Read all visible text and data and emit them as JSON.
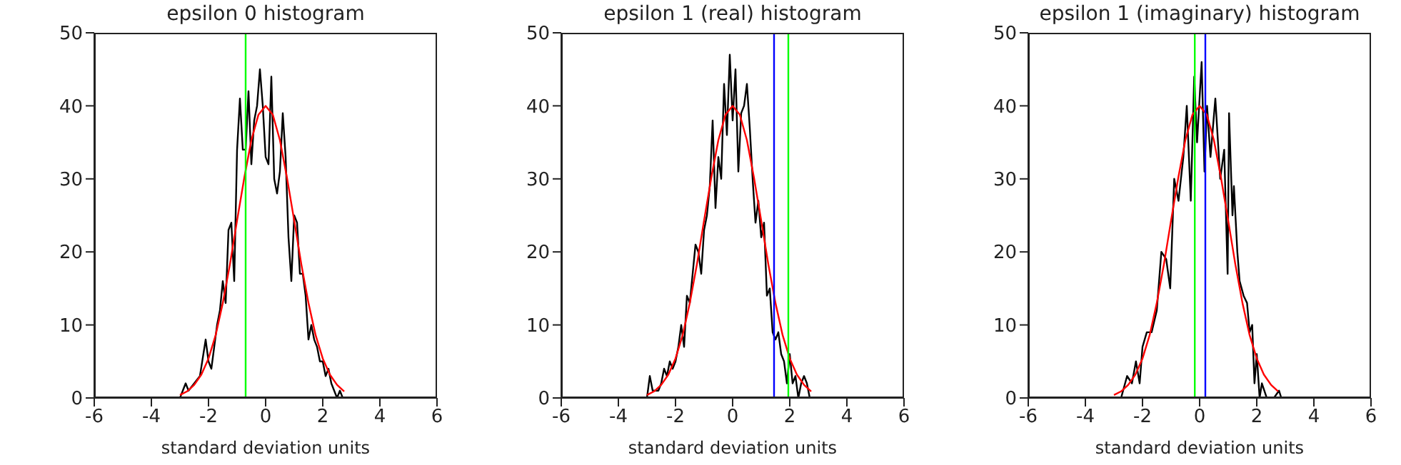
{
  "chart_data": [
    {
      "type": "line",
      "title": "epsilon 0 histogram",
      "xlabel": "standard deviation units",
      "xlim": [
        -6,
        6
      ],
      "xticks": [
        -6,
        -4,
        -2,
        0,
        2,
        4,
        6
      ],
      "ylim": [
        0,
        50
      ],
      "yticks": [
        0,
        10,
        20,
        30,
        40,
        50
      ],
      "legend": false,
      "marker": "none",
      "series": [
        {
          "color": "#000000",
          "x": [
            -3.0,
            -2.8,
            -2.7,
            -2.5,
            -2.3,
            -2.1,
            -2.0,
            -1.9,
            -1.8,
            -1.7,
            -1.6,
            -1.5,
            -1.4,
            -1.3,
            -1.2,
            -1.1,
            -1.0,
            -0.9,
            -0.8,
            -0.7,
            -0.6,
            -0.5,
            -0.4,
            -0.3,
            -0.2,
            -0.1,
            0.0,
            0.1,
            0.2,
            0.3,
            0.4,
            0.5,
            0.6,
            0.7,
            0.8,
            0.9,
            1.0,
            1.1,
            1.2,
            1.3,
            1.4,
            1.5,
            1.6,
            1.7,
            1.8,
            1.9,
            2.0,
            2.1,
            2.2,
            2.3,
            2.4,
            2.5,
            2.6,
            2.7
          ],
          "values": [
            0,
            2,
            1,
            2,
            3,
            8,
            5,
            4,
            7,
            10,
            12,
            16,
            13,
            23,
            24,
            16,
            34,
            41,
            34,
            34,
            42,
            32,
            38,
            40,
            45,
            40,
            33,
            32,
            44,
            30,
            28,
            31,
            39,
            33,
            22,
            16,
            25,
            24,
            17,
            17,
            14,
            8,
            10,
            8,
            7,
            5,
            5,
            3,
            4,
            2,
            1,
            0,
            1,
            0
          ]
        },
        {
          "color": "#ff0000",
          "x": [
            -3,
            -2.75,
            -2.5,
            -2.25,
            -2,
            -1.75,
            -1.5,
            -1.25,
            -1,
            -0.75,
            -0.5,
            -0.25,
            0,
            0.25,
            0.5,
            0.75,
            1,
            1.25,
            1.5,
            1.75,
            2,
            2.25,
            2.5,
            2.75
          ],
          "values": [
            0.4,
            0.9,
            1.8,
            3.2,
            5.4,
            8.6,
            13,
            18.3,
            24.3,
            30.1,
            35.3,
            38.8,
            40,
            38.8,
            35.3,
            30.1,
            24.3,
            18.3,
            13,
            8.6,
            5.4,
            3.2,
            1.8,
            0.9
          ]
        }
      ],
      "ref_lines": [
        {
          "axis": "x",
          "value": -0.7,
          "color": "#00ff00"
        }
      ]
    },
    {
      "type": "line",
      "title": "epsilon 1 (real) histogram",
      "xlabel": "standard deviation units",
      "xlim": [
        -6,
        6
      ],
      "xticks": [
        -6,
        -4,
        -2,
        0,
        2,
        4,
        6
      ],
      "ylim": [
        0,
        50
      ],
      "yticks": [
        0,
        10,
        20,
        30,
        40,
        50
      ],
      "legend": false,
      "marker": "none",
      "series": [
        {
          "color": "#000000",
          "x": [
            -3.0,
            -2.9,
            -2.8,
            -2.6,
            -2.5,
            -2.4,
            -2.3,
            -2.2,
            -2.1,
            -2.0,
            -1.9,
            -1.8,
            -1.7,
            -1.6,
            -1.5,
            -1.4,
            -1.3,
            -1.2,
            -1.1,
            -1.0,
            -0.9,
            -0.8,
            -0.7,
            -0.6,
            -0.5,
            -0.4,
            -0.3,
            -0.2,
            -0.1,
            0.0,
            0.1,
            0.2,
            0.3,
            0.4,
            0.5,
            0.6,
            0.7,
            0.8,
            0.9,
            1.0,
            1.1,
            1.2,
            1.3,
            1.4,
            1.5,
            1.6,
            1.7,
            1.8,
            1.9,
            2.0,
            2.1,
            2.2,
            2.3,
            2.4,
            2.5,
            2.6,
            2.7
          ],
          "values": [
            0,
            3,
            1,
            1,
            2,
            4,
            3,
            5,
            4,
            5,
            7,
            10,
            7,
            14,
            13,
            17,
            21,
            20,
            17,
            23,
            25,
            29,
            38,
            26,
            33,
            30,
            43,
            36,
            47,
            38,
            45,
            31,
            39,
            40,
            43,
            37,
            30,
            24,
            27,
            22,
            24,
            14,
            15,
            9,
            8,
            9,
            6,
            5,
            2,
            6,
            2,
            3,
            0,
            2,
            3,
            2,
            0
          ]
        },
        {
          "color": "#ff0000",
          "x": [
            -3,
            -2.75,
            -2.5,
            -2.25,
            -2,
            -1.75,
            -1.5,
            -1.25,
            -1,
            -0.75,
            -0.5,
            -0.25,
            0,
            0.25,
            0.5,
            0.75,
            1,
            1.25,
            1.5,
            1.75,
            2,
            2.25,
            2.5,
            2.75
          ],
          "values": [
            0.4,
            0.9,
            1.8,
            3.2,
            5.4,
            8.6,
            13,
            18.3,
            24.3,
            30.1,
            35.3,
            38.8,
            40,
            38.8,
            35.3,
            30.1,
            24.3,
            18.3,
            13,
            8.6,
            5.4,
            3.2,
            1.8,
            0.9
          ]
        }
      ],
      "ref_lines": [
        {
          "axis": "x",
          "value": 1.45,
          "color": "#0000ff"
        },
        {
          "axis": "x",
          "value": 1.95,
          "color": "#00ff00"
        }
      ]
    },
    {
      "type": "line",
      "title": "epsilon 1 (imaginary) histogram",
      "xlabel": "standard deviation units",
      "xlim": [
        -6,
        6
      ],
      "xticks": [
        -6,
        -4,
        -2,
        0,
        2,
        4,
        6
      ],
      "ylim": [
        0,
        50
      ],
      "yticks": [
        0,
        10,
        20,
        30,
        40,
        50
      ],
      "legend": false,
      "marker": "none",
      "series": [
        {
          "color": "#000000",
          "x": [
            -2.9,
            -2.75,
            -2.54,
            -2.37,
            -2.23,
            -2.1,
            -2.0,
            -1.85,
            -1.68,
            -1.5,
            -1.34,
            -1.17,
            -1.03,
            -0.89,
            -0.74,
            -0.57,
            -0.45,
            -0.31,
            -0.19,
            -0.09,
            0.07,
            0.17,
            0.26,
            0.38,
            0.55,
            0.72,
            0.86,
            0.98,
            1.03,
            1.15,
            1.2,
            1.32,
            1.4,
            1.54,
            1.66,
            1.75,
            1.84,
            1.92,
            2.0,
            2.1,
            2.18,
            2.35,
            2.6,
            2.78,
            2.86
          ],
          "values": [
            0,
            0,
            3,
            2,
            5,
            2,
            7,
            9,
            9,
            12,
            20,
            19,
            15,
            30,
            27,
            33,
            40,
            27,
            44,
            35,
            46,
            31,
            40,
            33,
            41,
            30,
            34,
            17,
            39,
            25,
            29,
            20,
            16,
            14,
            13,
            9,
            10,
            2,
            6,
            0,
            2,
            0,
            0,
            1,
            0
          ]
        },
        {
          "color": "#ff0000",
          "x": [
            -3,
            -2.75,
            -2.5,
            -2.25,
            -2,
            -1.75,
            -1.5,
            -1.25,
            -1,
            -0.75,
            -0.5,
            -0.25,
            0,
            0.25,
            0.5,
            0.75,
            1,
            1.25,
            1.5,
            1.75,
            2,
            2.25,
            2.5,
            2.75
          ],
          "values": [
            0.4,
            0.9,
            1.8,
            3.2,
            5.4,
            8.6,
            13,
            18.3,
            24.3,
            30.1,
            35.3,
            38.8,
            40,
            38.8,
            35.3,
            30.1,
            24.3,
            18.3,
            13,
            8.6,
            5.4,
            3.2,
            1.8,
            0.9
          ]
        }
      ],
      "ref_lines": [
        {
          "axis": "x",
          "value": -0.17,
          "color": "#00ff00"
        },
        {
          "axis": "x",
          "value": 0.2,
          "color": "#0000ff"
        }
      ]
    }
  ]
}
